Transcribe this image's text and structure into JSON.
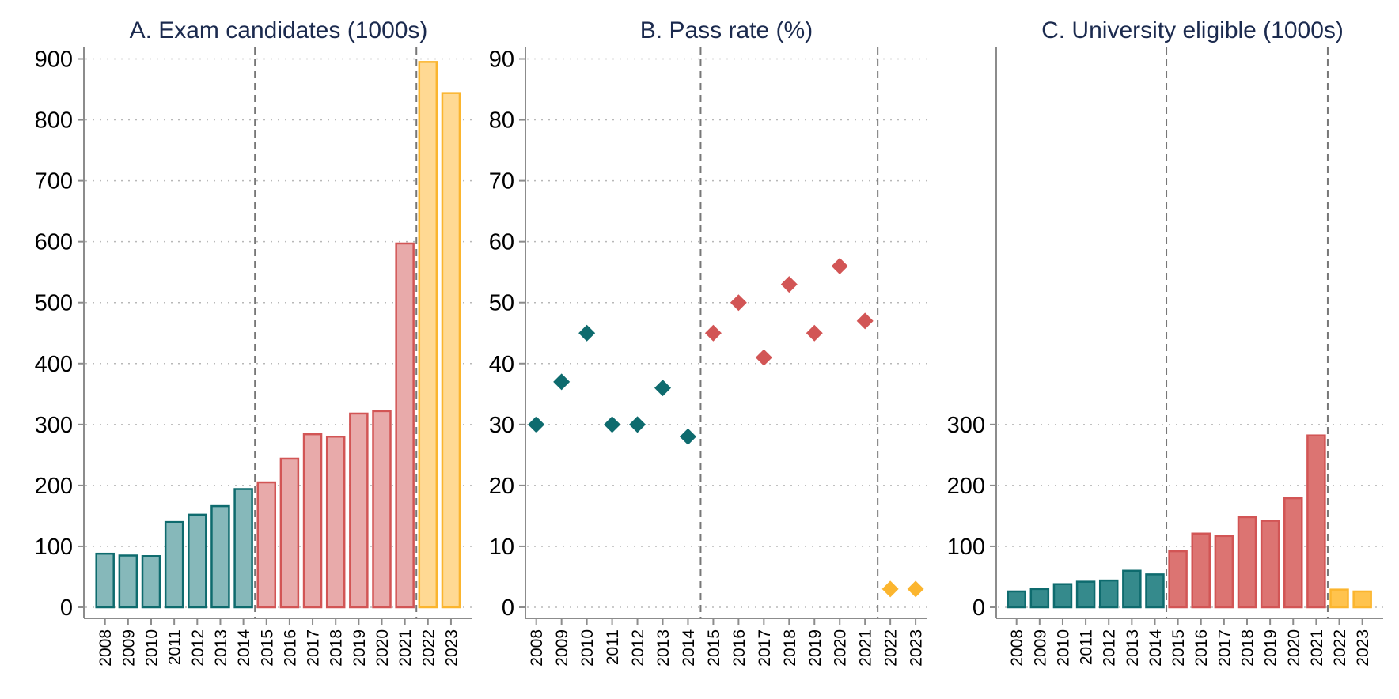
{
  "chart_data": [
    {
      "id": "A",
      "type": "bar",
      "title": "A. Exam candidates (1000s)",
      "xlabel": "",
      "ylabel": "",
      "categories": [
        "2008",
        "2009",
        "2010",
        "2011",
        "2012",
        "2013",
        "2014",
        "2015",
        "2016",
        "2017",
        "2018",
        "2019",
        "2020",
        "2021",
        "2022",
        "2023"
      ],
      "values": [
        88,
        85,
        84,
        140,
        152,
        166,
        194,
        205,
        244,
        284,
        280,
        318,
        322,
        597,
        895,
        844
      ],
      "groups": [
        "g1",
        "g1",
        "g1",
        "g1",
        "g1",
        "g1",
        "g1",
        "g2",
        "g2",
        "g2",
        "g2",
        "g2",
        "g2",
        "g2",
        "g3",
        "g3"
      ],
      "ylim": [
        0,
        900
      ],
      "yticks": [
        0,
        100,
        200,
        300,
        400,
        500,
        600,
        700,
        800,
        900
      ],
      "ytick_labels": [
        "0",
        "100",
        "200",
        "300",
        "400",
        "500",
        "600",
        "700",
        "800",
        "900"
      ],
      "period_breaks_after": [
        "2014",
        "2021"
      ],
      "grid": true,
      "style": "light"
    },
    {
      "id": "B",
      "type": "scatter",
      "title": "B. Pass rate (%)",
      "xlabel": "",
      "ylabel": "",
      "categories": [
        "2008",
        "2009",
        "2010",
        "2011",
        "2012",
        "2013",
        "2014",
        "2015",
        "2016",
        "2017",
        "2018",
        "2019",
        "2020",
        "2021",
        "2022",
        "2023"
      ],
      "values": [
        30,
        37,
        45,
        30,
        30,
        36,
        28,
        45,
        50,
        41,
        53,
        45,
        56,
        47,
        3,
        3
      ],
      "groups": [
        "g1",
        "g1",
        "g1",
        "g1",
        "g1",
        "g1",
        "g1",
        "g2",
        "g2",
        "g2",
        "g2",
        "g2",
        "g2",
        "g2",
        "g3",
        "g3"
      ],
      "marker": "diamond",
      "ylim": [
        0,
        90
      ],
      "yticks": [
        0,
        10,
        20,
        30,
        40,
        50,
        60,
        70,
        80,
        90
      ],
      "ytick_labels": [
        "0",
        "10",
        "20",
        "30",
        "40",
        "50",
        "60",
        "70",
        "80",
        "90"
      ],
      "period_breaks_after": [
        "2014",
        "2021"
      ],
      "grid": true
    },
    {
      "id": "C",
      "type": "bar",
      "title": "C. University eligible (1000s)",
      "xlabel": "",
      "ylabel": "",
      "categories": [
        "2008",
        "2009",
        "2010",
        "2011",
        "2012",
        "2013",
        "2014",
        "2015",
        "2016",
        "2017",
        "2018",
        "2019",
        "2020",
        "2021",
        "2022",
        "2023"
      ],
      "values": [
        26,
        30,
        38,
        42,
        44,
        60,
        54,
        92,
        121,
        117,
        148,
        142,
        179,
        282,
        29,
        26
      ],
      "groups": [
        "g1",
        "g1",
        "g1",
        "g1",
        "g1",
        "g1",
        "g1",
        "g2",
        "g2",
        "g2",
        "g2",
        "g2",
        "g2",
        "g2",
        "g3",
        "g3"
      ],
      "ylim": [
        0,
        900
      ],
      "yticks": [
        0,
        100,
        200,
        300
      ],
      "ytick_labels": [
        "0",
        "100",
        "200",
        "300"
      ],
      "period_breaks_after": [
        "2014",
        "2021"
      ],
      "grid": true,
      "style": "dark"
    }
  ],
  "colors": {
    "g1": {
      "light_fill": "#86b8ba",
      "dark_fill": "#358a8c",
      "stroke": "#0e6b6e",
      "marker": "#0e6b6e"
    },
    "g2": {
      "light_fill": "#e8aaaa",
      "dark_fill": "#dc7472",
      "stroke": "#d25555",
      "marker": "#d25555"
    },
    "g3": {
      "light_fill": "#ffd993",
      "dark_fill": "#ffc34d",
      "stroke": "#fbb52e",
      "marker": "#fbb52e"
    },
    "title": "#1b2a4e"
  }
}
